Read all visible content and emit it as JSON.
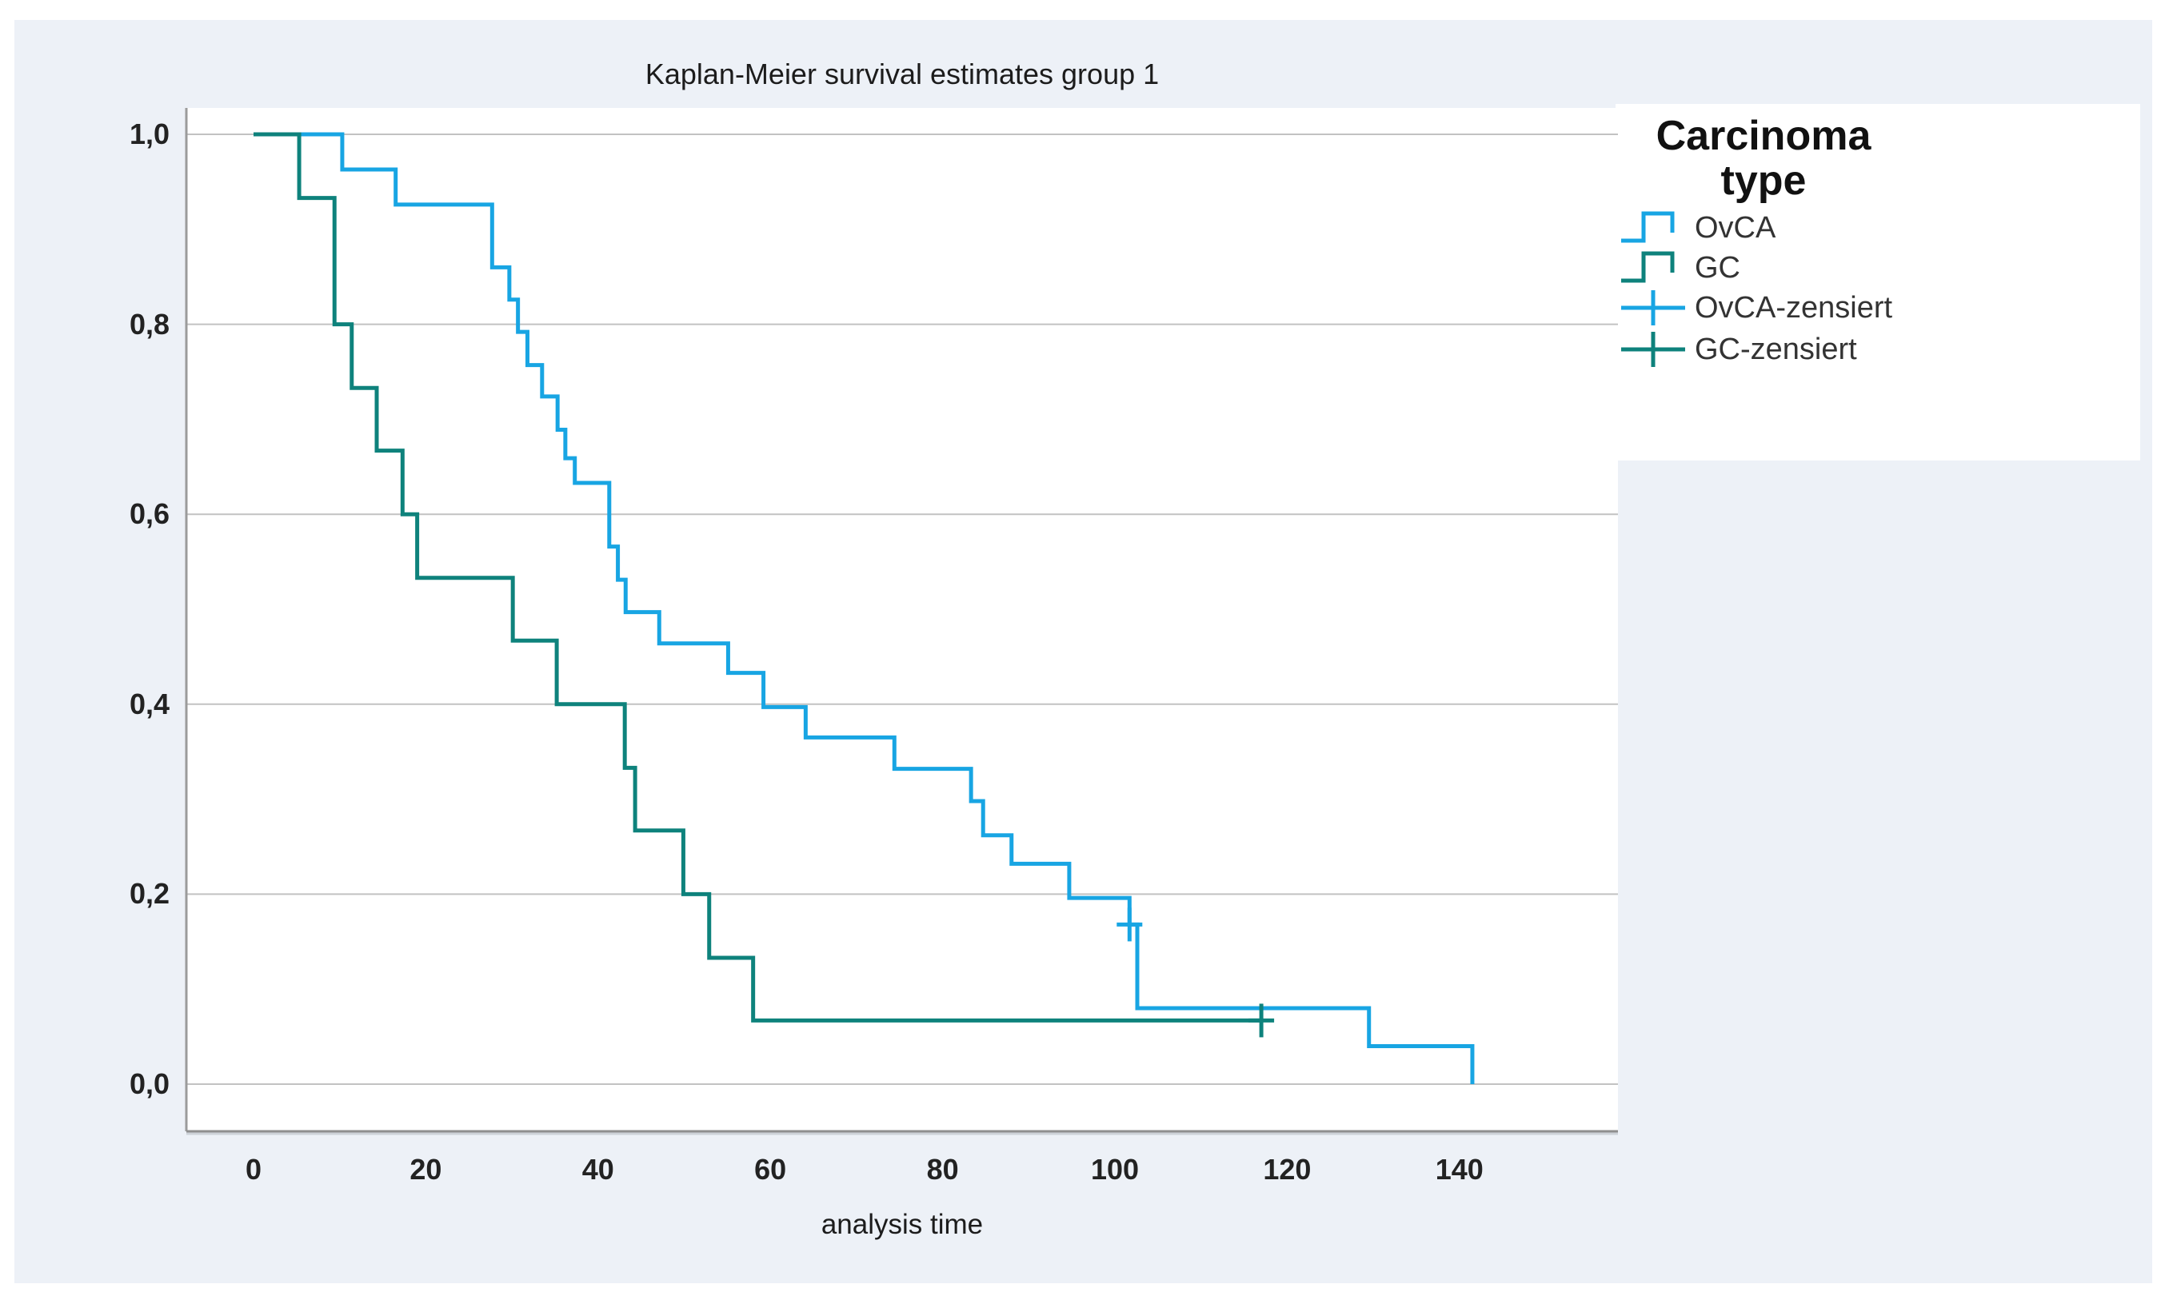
{
  "page": {
    "background": "#ffffff",
    "panel_background": "#edf1f7",
    "plot_background": "#ffffff",
    "gridline_color": "#c2c2c2",
    "axis_color": "#9b9b9b",
    "text_color": "#222222",
    "ovca_color": "#18a5e3",
    "gc_color": "#0e827c"
  },
  "title": "Kaplan-Meier survival estimates group 1",
  "x_axis": {
    "label": "analysis time",
    "tick_labels": [
      "0",
      "20",
      "40",
      "60",
      "80",
      "100",
      "120",
      "140"
    ]
  },
  "y_axis": {
    "tick_labels": [
      "1,0",
      "0,8",
      "0,6",
      "0,4",
      "0,2",
      "0,0"
    ]
  },
  "legend": {
    "title_lines": [
      "Carcinoma",
      "type"
    ],
    "items": [
      {
        "label": "OvCA",
        "symbol": "step",
        "color": "#18a5e3"
      },
      {
        "label": "GC",
        "symbol": "step",
        "color": "#0e827c"
      },
      {
        "label": "OvCA-zensiert",
        "symbol": "plus",
        "color": "#18a5e3"
      },
      {
        "label": "GC-zensiert",
        "symbol": "plus",
        "color": "#0e827c"
      }
    ]
  },
  "chart_data": {
    "type": "line",
    "subtype": "kaplan-meier-step",
    "title": "Kaplan-Meier survival estimates group 1",
    "xlabel": "analysis time",
    "ylabel": "",
    "xlim": [
      -8,
      158
    ],
    "ylim": [
      0.0,
      1.05
    ],
    "x_ticks": [
      0,
      20,
      40,
      60,
      80,
      100,
      120,
      140
    ],
    "y_ticks": [
      1.0,
      0.8,
      0.6,
      0.4,
      0.2,
      0.0
    ],
    "y_tick_labels": [
      "1,0",
      "0,8",
      "0,6",
      "0,4",
      "0,2",
      "0,0"
    ],
    "grid": true,
    "legend_position": "right",
    "series": [
      {
        "name": "OvCA",
        "color": "#18a5e3",
        "start": [
          0,
          1.0
        ],
        "steps": [
          [
            10.3,
            0.963
          ],
          [
            16.5,
            0.926
          ],
          [
            27.7,
            0.86
          ],
          [
            29.7,
            0.826
          ],
          [
            30.7,
            0.792
          ],
          [
            31.8,
            0.757
          ],
          [
            33.5,
            0.724
          ],
          [
            35.3,
            0.689
          ],
          [
            36.2,
            0.659
          ],
          [
            37.3,
            0.633
          ],
          [
            41.3,
            0.566
          ],
          [
            42.3,
            0.531
          ],
          [
            43.2,
            0.497
          ],
          [
            47.1,
            0.464
          ],
          [
            55.1,
            0.433
          ],
          [
            59.2,
            0.397
          ],
          [
            64.1,
            0.365
          ],
          [
            74.4,
            0.332
          ],
          [
            83.3,
            0.298
          ],
          [
            84.7,
            0.262
          ],
          [
            88.0,
            0.232
          ],
          [
            94.7,
            0.196
          ],
          [
            101.7,
            0.168
          ],
          [
            102.6,
            0.08
          ],
          [
            129.5,
            0.04
          ],
          [
            141.5,
            0.0
          ]
        ],
        "end_x": 141.5
      },
      {
        "name": "GC",
        "color": "#0e827c",
        "start": [
          0,
          1.0
        ],
        "steps": [
          [
            5.3,
            0.933
          ],
          [
            9.4,
            0.8
          ],
          [
            11.4,
            0.733
          ],
          [
            14.3,
            0.667
          ],
          [
            17.3,
            0.6
          ],
          [
            19.0,
            0.533
          ],
          [
            30.1,
            0.467
          ],
          [
            35.2,
            0.4
          ],
          [
            43.1,
            0.333
          ],
          [
            44.3,
            0.267
          ],
          [
            49.9,
            0.2
          ],
          [
            52.9,
            0.133
          ],
          [
            58.0,
            0.067
          ]
        ],
        "end_x": 117.0
      }
    ],
    "censored_marks": [
      {
        "series": "OvCA",
        "x": 101.7,
        "y": 0.168
      },
      {
        "series": "GC",
        "x": 117.0,
        "y": 0.067
      }
    ]
  }
}
